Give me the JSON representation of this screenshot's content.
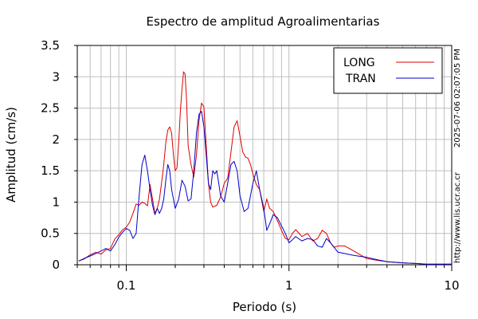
{
  "chart_data": {
    "type": "line",
    "title": "Espectro de amplitud Agroalimentarias",
    "xlabel": "Periodo (s)",
    "ylabel": "Amplitud (cm/s)",
    "x_scale": "log",
    "xlim": [
      0.05,
      10
    ],
    "ylim": [
      0,
      3.5
    ],
    "x_ticks": [
      {
        "value": 0.1,
        "label": "0.1"
      },
      {
        "value": 1,
        "label": "1"
      },
      {
        "value": 10,
        "label": "10"
      }
    ],
    "y_ticks": [
      {
        "value": 0,
        "label": "0"
      },
      {
        "value": 0.5,
        "label": "0.5"
      },
      {
        "value": 1,
        "label": "1"
      },
      {
        "value": 1.5,
        "label": "1.5"
      },
      {
        "value": 2,
        "label": "2"
      },
      {
        "value": 2.5,
        "label": "2.5"
      },
      {
        "value": 3,
        "label": "3"
      },
      {
        "value": 3.5,
        "label": "3.5"
      }
    ],
    "grid": true,
    "legend_position": "top-right",
    "side_notes": [
      "2025-07-06 02:07:05 PM",
      "http://www.lis.ucr.ac.cr"
    ],
    "series": [
      {
        "name": "LONG",
        "color": "#e00000",
        "points": [
          [
            0.051,
            0.06
          ],
          [
            0.055,
            0.09
          ],
          [
            0.06,
            0.16
          ],
          [
            0.065,
            0.2
          ],
          [
            0.07,
            0.17
          ],
          [
            0.075,
            0.24
          ],
          [
            0.08,
            0.26
          ],
          [
            0.085,
            0.41
          ],
          [
            0.09,
            0.48
          ],
          [
            0.095,
            0.56
          ],
          [
            0.1,
            0.6
          ],
          [
            0.105,
            0.68
          ],
          [
            0.11,
            0.82
          ],
          [
            0.115,
            0.97
          ],
          [
            0.12,
            0.95
          ],
          [
            0.125,
            1.0
          ],
          [
            0.13,
            0.98
          ],
          [
            0.135,
            0.94
          ],
          [
            0.14,
            1.28
          ],
          [
            0.145,
            1.05
          ],
          [
            0.15,
            0.82
          ],
          [
            0.155,
            0.9
          ],
          [
            0.16,
            1.05
          ],
          [
            0.165,
            1.32
          ],
          [
            0.17,
            1.6
          ],
          [
            0.175,
            1.95
          ],
          [
            0.18,
            2.15
          ],
          [
            0.185,
            2.2
          ],
          [
            0.19,
            2.1
          ],
          [
            0.195,
            1.75
          ],
          [
            0.2,
            1.5
          ],
          [
            0.205,
            1.55
          ],
          [
            0.21,
            1.95
          ],
          [
            0.215,
            2.45
          ],
          [
            0.22,
            2.8
          ],
          [
            0.225,
            3.08
          ],
          [
            0.23,
            3.04
          ],
          [
            0.235,
            2.6
          ],
          [
            0.24,
            1.9
          ],
          [
            0.25,
            1.6
          ],
          [
            0.26,
            1.4
          ],
          [
            0.27,
            1.75
          ],
          [
            0.28,
            2.3
          ],
          [
            0.29,
            2.58
          ],
          [
            0.3,
            2.52
          ],
          [
            0.31,
            1.9
          ],
          [
            0.32,
            1.3
          ],
          [
            0.33,
            1.0
          ],
          [
            0.34,
            0.92
          ],
          [
            0.36,
            0.95
          ],
          [
            0.38,
            1.08
          ],
          [
            0.4,
            1.3
          ],
          [
            0.42,
            1.38
          ],
          [
            0.44,
            1.8
          ],
          [
            0.46,
            2.2
          ],
          [
            0.48,
            2.3
          ],
          [
            0.5,
            2.05
          ],
          [
            0.52,
            1.8
          ],
          [
            0.54,
            1.72
          ],
          [
            0.56,
            1.7
          ],
          [
            0.58,
            1.6
          ],
          [
            0.6,
            1.45
          ],
          [
            0.63,
            1.28
          ],
          [
            0.66,
            1.2
          ],
          [
            0.7,
            0.85
          ],
          [
            0.73,
            1.05
          ],
          [
            0.76,
            0.9
          ],
          [
            0.8,
            0.85
          ],
          [
            0.85,
            0.7
          ],
          [
            0.9,
            0.55
          ],
          [
            0.95,
            0.42
          ],
          [
            1.0,
            0.4
          ],
          [
            1.05,
            0.5
          ],
          [
            1.1,
            0.56
          ],
          [
            1.2,
            0.45
          ],
          [
            1.3,
            0.5
          ],
          [
            1.4,
            0.38
          ],
          [
            1.5,
            0.42
          ],
          [
            1.6,
            0.55
          ],
          [
            1.7,
            0.5
          ],
          [
            1.8,
            0.35
          ],
          [
            1.9,
            0.28
          ],
          [
            2.0,
            0.3
          ],
          [
            2.2,
            0.3
          ],
          [
            2.5,
            0.22
          ],
          [
            3.0,
            0.1
          ],
          [
            3.5,
            0.07
          ],
          [
            4.0,
            0.05
          ],
          [
            5.0,
            0.03
          ],
          [
            6.0,
            0.02
          ],
          [
            7.0,
            0.01
          ],
          [
            8.0,
            0.01
          ],
          [
            10.0,
            0.01
          ]
        ]
      },
      {
        "name": "TRAN",
        "color": "#0000c8",
        "points": [
          [
            0.051,
            0.06
          ],
          [
            0.055,
            0.1
          ],
          [
            0.06,
            0.14
          ],
          [
            0.065,
            0.18
          ],
          [
            0.07,
            0.22
          ],
          [
            0.075,
            0.26
          ],
          [
            0.08,
            0.22
          ],
          [
            0.085,
            0.32
          ],
          [
            0.09,
            0.44
          ],
          [
            0.095,
            0.52
          ],
          [
            0.1,
            0.58
          ],
          [
            0.105,
            0.55
          ],
          [
            0.11,
            0.42
          ],
          [
            0.115,
            0.5
          ],
          [
            0.12,
            1.1
          ],
          [
            0.125,
            1.6
          ],
          [
            0.13,
            1.75
          ],
          [
            0.135,
            1.5
          ],
          [
            0.14,
            1.2
          ],
          [
            0.145,
            0.95
          ],
          [
            0.15,
            0.8
          ],
          [
            0.155,
            0.9
          ],
          [
            0.16,
            0.82
          ],
          [
            0.165,
            0.9
          ],
          [
            0.17,
            1.05
          ],
          [
            0.175,
            1.35
          ],
          [
            0.18,
            1.6
          ],
          [
            0.185,
            1.5
          ],
          [
            0.19,
            1.2
          ],
          [
            0.2,
            0.9
          ],
          [
            0.21,
            1.05
          ],
          [
            0.22,
            1.35
          ],
          [
            0.23,
            1.25
          ],
          [
            0.24,
            1.02
          ],
          [
            0.25,
            1.05
          ],
          [
            0.26,
            1.5
          ],
          [
            0.27,
            2.1
          ],
          [
            0.28,
            2.4
          ],
          [
            0.29,
            2.45
          ],
          [
            0.3,
            2.2
          ],
          [
            0.31,
            1.75
          ],
          [
            0.32,
            1.3
          ],
          [
            0.33,
            1.2
          ],
          [
            0.34,
            1.5
          ],
          [
            0.35,
            1.45
          ],
          [
            0.36,
            1.5
          ],
          [
            0.37,
            1.3
          ],
          [
            0.38,
            1.1
          ],
          [
            0.4,
            1.0
          ],
          [
            0.42,
            1.3
          ],
          [
            0.44,
            1.6
          ],
          [
            0.46,
            1.65
          ],
          [
            0.48,
            1.5
          ],
          [
            0.5,
            1.1
          ],
          [
            0.53,
            0.85
          ],
          [
            0.56,
            0.9
          ],
          [
            0.6,
            1.3
          ],
          [
            0.63,
            1.5
          ],
          [
            0.66,
            1.2
          ],
          [
            0.7,
            0.9
          ],
          [
            0.73,
            0.55
          ],
          [
            0.76,
            0.65
          ],
          [
            0.8,
            0.8
          ],
          [
            0.85,
            0.75
          ],
          [
            0.9,
            0.62
          ],
          [
            0.95,
            0.5
          ],
          [
            1.0,
            0.35
          ],
          [
            1.05,
            0.4
          ],
          [
            1.1,
            0.45
          ],
          [
            1.2,
            0.38
          ],
          [
            1.3,
            0.42
          ],
          [
            1.4,
            0.4
          ],
          [
            1.5,
            0.3
          ],
          [
            1.6,
            0.28
          ],
          [
            1.7,
            0.42
          ],
          [
            1.8,
            0.35
          ],
          [
            2.0,
            0.2
          ],
          [
            2.2,
            0.18
          ],
          [
            2.5,
            0.15
          ],
          [
            3.0,
            0.12
          ],
          [
            3.5,
            0.08
          ],
          [
            4.0,
            0.05
          ],
          [
            5.0,
            0.03
          ],
          [
            6.0,
            0.02
          ],
          [
            7.0,
            0.01
          ],
          [
            8.0,
            0.01
          ],
          [
            10.0,
            0.01
          ]
        ]
      }
    ]
  }
}
